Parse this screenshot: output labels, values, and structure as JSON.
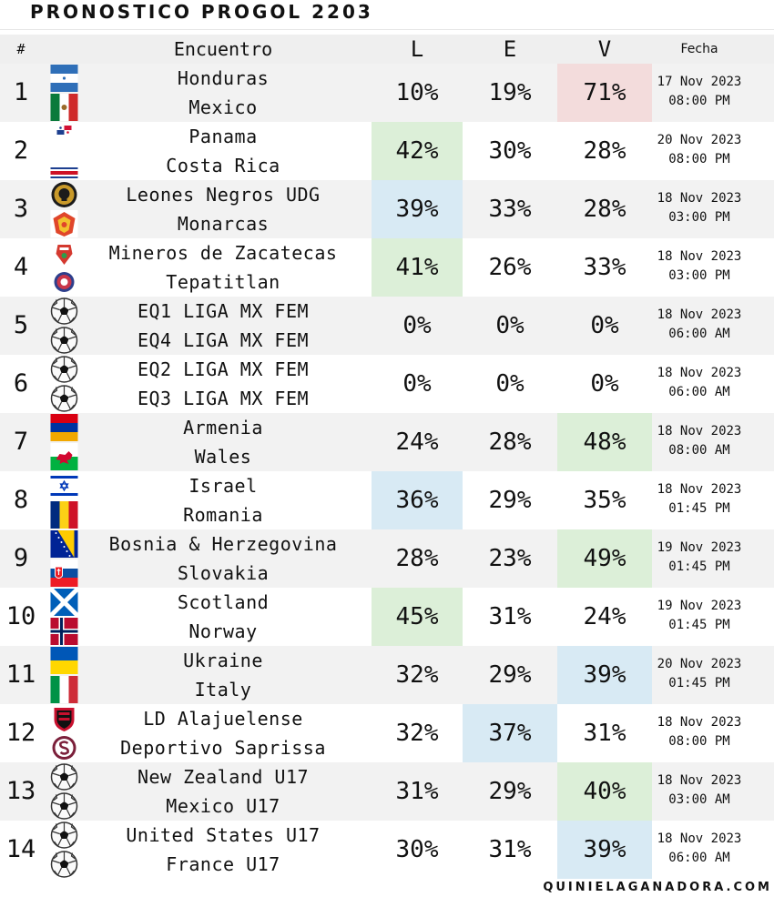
{
  "title": "PRONOSTICO PROGOL 2203",
  "header": {
    "num": "#",
    "match": "Encuentro",
    "l": "L",
    "e": "E",
    "v": "V",
    "date": "Fecha"
  },
  "colors": {
    "green": "#dcefd8",
    "blue": "#d8eaf4",
    "red": "#f3dcdc"
  },
  "rows": [
    {
      "num": "1",
      "home": "Honduras",
      "away": "Mexico",
      "home_icon": "honduras-flag",
      "away_icon": "mexico-flag",
      "l": "10%",
      "e": "19%",
      "v": "71%",
      "hl": "v",
      "hl_color": "red",
      "date": "17 Nov 2023",
      "time": "08:00 PM"
    },
    {
      "num": "2",
      "home": "Panama",
      "away": "Costa Rica",
      "home_icon": "panama-flag",
      "away_icon": "costa-rica-flag",
      "l": "42%",
      "e": "30%",
      "v": "28%",
      "hl": "l",
      "hl_color": "green",
      "date": "20 Nov 2023",
      "time": "08:00 PM"
    },
    {
      "num": "3",
      "home": "Leones Negros UDG",
      "away": "Monarcas",
      "home_icon": "leones-negros-crest",
      "away_icon": "monarcas-crest",
      "l": "39%",
      "e": "33%",
      "v": "28%",
      "hl": "l",
      "hl_color": "blue",
      "date": "18 Nov 2023",
      "time": "03:00 PM"
    },
    {
      "num": "4",
      "home": "Mineros de Zacatecas",
      "away": "Tepatitlan",
      "home_icon": "mineros-crest",
      "away_icon": "tepatitlan-crest",
      "l": "41%",
      "e": "26%",
      "v": "33%",
      "hl": "l",
      "hl_color": "green",
      "date": "18 Nov 2023",
      "time": "03:00 PM"
    },
    {
      "num": "5",
      "home": "EQ1 LIGA MX FEM",
      "away": "EQ4 LIGA MX FEM",
      "home_icon": "soccer-ball",
      "away_icon": "soccer-ball",
      "l": "0%",
      "e": "0%",
      "v": "0%",
      "hl": "",
      "hl_color": "",
      "date": "18 Nov 2023",
      "time": "06:00 AM"
    },
    {
      "num": "6",
      "home": "EQ2 LIGA MX FEM",
      "away": "EQ3 LIGA MX FEM",
      "home_icon": "soccer-ball",
      "away_icon": "soccer-ball",
      "l": "0%",
      "e": "0%",
      "v": "0%",
      "hl": "",
      "hl_color": "",
      "date": "18 Nov 2023",
      "time": "06:00 AM"
    },
    {
      "num": "7",
      "home": "Armenia",
      "away": "Wales",
      "home_icon": "armenia-flag",
      "away_icon": "wales-flag",
      "l": "24%",
      "e": "28%",
      "v": "48%",
      "hl": "v",
      "hl_color": "green",
      "date": "18 Nov 2023",
      "time": "08:00 AM"
    },
    {
      "num": "8",
      "home": "Israel",
      "away": "Romania",
      "home_icon": "israel-flag",
      "away_icon": "romania-flag",
      "l": "36%",
      "e": "29%",
      "v": "35%",
      "hl": "l",
      "hl_color": "blue",
      "date": "18 Nov 2023",
      "time": "01:45 PM"
    },
    {
      "num": "9",
      "home": "Bosnia & Herzegovina",
      "away": "Slovakia",
      "home_icon": "bosnia-flag",
      "away_icon": "slovakia-flag",
      "l": "28%",
      "e": "23%",
      "v": "49%",
      "hl": "v",
      "hl_color": "green",
      "date": "19 Nov 2023",
      "time": "01:45 PM"
    },
    {
      "num": "10",
      "home": "Scotland",
      "away": "Norway",
      "home_icon": "scotland-flag",
      "away_icon": "norway-flag",
      "l": "45%",
      "e": "31%",
      "v": "24%",
      "hl": "l",
      "hl_color": "green",
      "date": "19 Nov 2023",
      "time": "01:45 PM"
    },
    {
      "num": "11",
      "home": "Ukraine",
      "away": "Italy",
      "home_icon": "ukraine-flag",
      "away_icon": "italy-flag",
      "l": "32%",
      "e": "29%",
      "v": "39%",
      "hl": "v",
      "hl_color": "blue",
      "date": "20 Nov 2023",
      "time": "01:45 PM"
    },
    {
      "num": "12",
      "home": "LD Alajuelense",
      "away": "Deportivo Saprissa",
      "home_icon": "alajuelense-crest",
      "away_icon": "saprissa-crest",
      "l": "32%",
      "e": "37%",
      "v": "31%",
      "hl": "e",
      "hl_color": "blue",
      "date": "18 Nov 2023",
      "time": "08:00 PM"
    },
    {
      "num": "13",
      "home": "New Zealand U17",
      "away": "Mexico U17",
      "home_icon": "soccer-ball",
      "away_icon": "soccer-ball",
      "l": "31%",
      "e": "29%",
      "v": "40%",
      "hl": "v",
      "hl_color": "green",
      "date": "18 Nov 2023",
      "time": "03:00 AM"
    },
    {
      "num": "14",
      "home": "United States U17",
      "away": "France U17",
      "home_icon": "soccer-ball",
      "away_icon": "soccer-ball",
      "l": "30%",
      "e": "31%",
      "v": "39%",
      "hl": "v",
      "hl_color": "blue",
      "date": "18 Nov 2023",
      "time": "06:00 AM"
    }
  ],
  "footer": "QUINIELAGANADORA.COM"
}
